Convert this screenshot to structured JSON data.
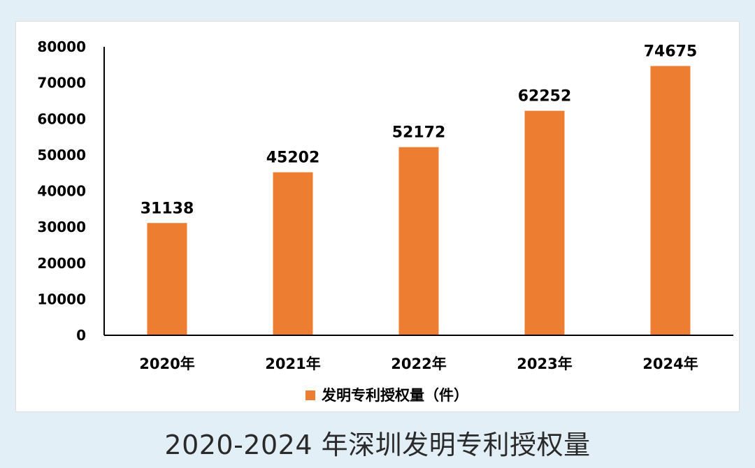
{
  "caption": "2020-2024 年深圳发明专利授权量",
  "colors": {
    "bar": "#ed7d31",
    "background": "#e3eff6",
    "card": "#ffffff"
  },
  "chart_data": {
    "type": "bar",
    "categories": [
      "2020年",
      "2021年",
      "2022年",
      "2023年",
      "2024年"
    ],
    "series": [
      {
        "name": "发明专利授权量（件）",
        "values": [
          31138,
          45202,
          52172,
          62252,
          74675
        ]
      }
    ],
    "data_labels": [
      "31138",
      "45202",
      "52172",
      "62252",
      "74675"
    ],
    "yticks": [
      "0",
      "10000",
      "20000",
      "30000",
      "40000",
      "50000",
      "60000",
      "70000",
      "80000"
    ],
    "ylim": [
      0,
      80000
    ],
    "title": "",
    "xlabel": "",
    "ylabel": "",
    "grid": false,
    "legend_position": "bottom"
  }
}
